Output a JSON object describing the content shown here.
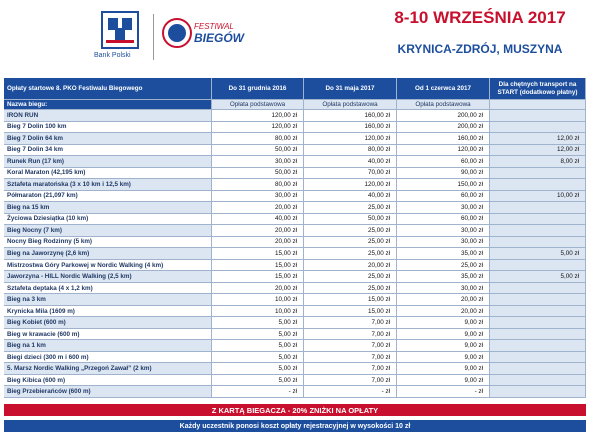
{
  "header": {
    "bank": "Bank Polski",
    "festival_top": "FESTIWAL",
    "festival_bottom": "BIEGÓW",
    "date": "8-10 WRZEŚNIA 2017",
    "location": "KRYNICA-ZDRÓJ, MUSZYNA"
  },
  "table": {
    "columns": [
      "Opłaty startowe 8. PKO Festiwalu Biegowego",
      "Do 31 grudnia 2016",
      "Do 31 maja 2017",
      "Od 1 czerwca 2017",
      "Dla chętnych transport na START (dodatkowo płatny)"
    ],
    "subheader": [
      "Nazwa biegu:",
      "Opłata podstawowa",
      "Opłata podstawowa",
      "Opłata podstawowa"
    ],
    "rows": [
      {
        "name": "IRON RUN",
        "fees": [
          "120,00 zł",
          "160,00 zł",
          "200,00 zł"
        ]
      },
      {
        "name": "Bieg 7 Dolin 100 km",
        "fees": [
          "120,00 zł",
          "160,00 zł",
          "200,00 zł"
        ]
      },
      {
        "name": "Bieg 7 Dolin 64 km",
        "fees": [
          "80,00 zł",
          "120,00 zł",
          "160,00 zł"
        ],
        "transport": "12,00 zł"
      },
      {
        "name": "Bieg 7 Dolin 34 km",
        "fees": [
          "50,00 zł",
          "80,00 zł",
          "120,00 zł"
        ],
        "transport": "12,00 zł"
      },
      {
        "name": "Runek Run (17 km)",
        "fees": [
          "30,00 zł",
          "40,00 zł",
          "60,00 zł"
        ],
        "transport": "8,00 zł"
      },
      {
        "name": "Koral Maraton (42,195 km)",
        "fees": [
          "50,00 zł",
          "70,00 zł",
          "90,00 zł"
        ]
      },
      {
        "name": "Sztafeta maratońska (3 x 10 km i 12,5 km)",
        "fees": [
          "80,00 zł",
          "120,00 zł",
          "150,00 zł"
        ]
      },
      {
        "name": "Półmaraton (21,097 km)",
        "fees": [
          "30,00 zł",
          "40,00 zł",
          "60,00 zł"
        ],
        "transport": "10,00 zł"
      },
      {
        "name": "Bieg na 15 km",
        "fees": [
          "20,00 zł",
          "25,00 zł",
          "30,00 zł"
        ]
      },
      {
        "name": "Życiowa Dziesiątka (10 km)",
        "fees": [
          "40,00 zł",
          "50,00 zł",
          "60,00 zł"
        ]
      },
      {
        "name": "Bieg Nocny (7 km)",
        "fees": [
          "20,00 zł",
          "25,00 zł",
          "30,00 zł"
        ]
      },
      {
        "name": "Nocny Bieg Rodzinny  (5 km)",
        "fees": [
          "20,00 zł",
          "25,00 zł",
          "30,00 zł"
        ]
      },
      {
        "name": "Bieg na Jaworzynę (2,6 km)",
        "fees": [
          "15,00 zł",
          "25,00 zł",
          "35,00 zł"
        ],
        "transport": "5,00 zł"
      },
      {
        "name": "Mistrzostwa Góry Parkowej w Nordic Walking (4 km)",
        "fees": [
          "15,00 zł",
          "20,00 zł",
          "25,00 zł"
        ]
      },
      {
        "name": "Jaworzyna - HILL Nordic Walking (2,5 km)",
        "fees": [
          "15,00 zł",
          "25,00 zł",
          "35,00 zł"
        ],
        "transport": "5,00 zł"
      },
      {
        "name": "Sztafeta deptaka (4 x 1,2 km)",
        "fees": [
          "20,00 zł",
          "25,00 zł",
          "30,00 zł"
        ]
      },
      {
        "name": "Bieg na 3 km",
        "fees": [
          "10,00 zł",
          "15,00 zł",
          "20,00 zł"
        ]
      },
      {
        "name": "Krynicka Mila (1609 m)",
        "fees": [
          "10,00 zł",
          "15,00 zł",
          "20,00 zł"
        ]
      },
      {
        "name": "Bieg  Kobiet (600 m)",
        "fees": [
          "5,00 zł",
          "7,00 zł",
          "9,00 zł"
        ]
      },
      {
        "name": "Bieg w krawacie (600 m)",
        "fees": [
          "5,00 zł",
          "7,00 zł",
          "9,00 zł"
        ]
      },
      {
        "name": "Bieg na 1 km",
        "fees": [
          "5,00 zł",
          "7,00 zł",
          "9,00 zł"
        ]
      },
      {
        "name": "Biegi dzieci (300 m i 600 m)",
        "fees": [
          "5,00 zł",
          "7,00 zł",
          "9,00 zł"
        ]
      },
      {
        "name": "5. Marsz Nordic Walking „Przegoń Zawał” (2 km)",
        "fees": [
          "5,00 zł",
          "7,00 zł",
          "9,00 zł"
        ]
      },
      {
        "name": "Bieg Kibica (600 m)",
        "fees": [
          "5,00 zł",
          "7,00 zł",
          "9,00 zł"
        ]
      },
      {
        "name": "Bieg Przebierańców (600 m)",
        "fees": [
          "-  zł",
          "-  zł",
          "-  zł"
        ]
      }
    ]
  },
  "banner": "Z KARTĄ BIEGACZA - 20% ZNIŻKI NA OPŁATY",
  "footer": "Każdy uczestnik ponosi koszt opłaty rejestracyjnej w wysokości 10 zł"
}
